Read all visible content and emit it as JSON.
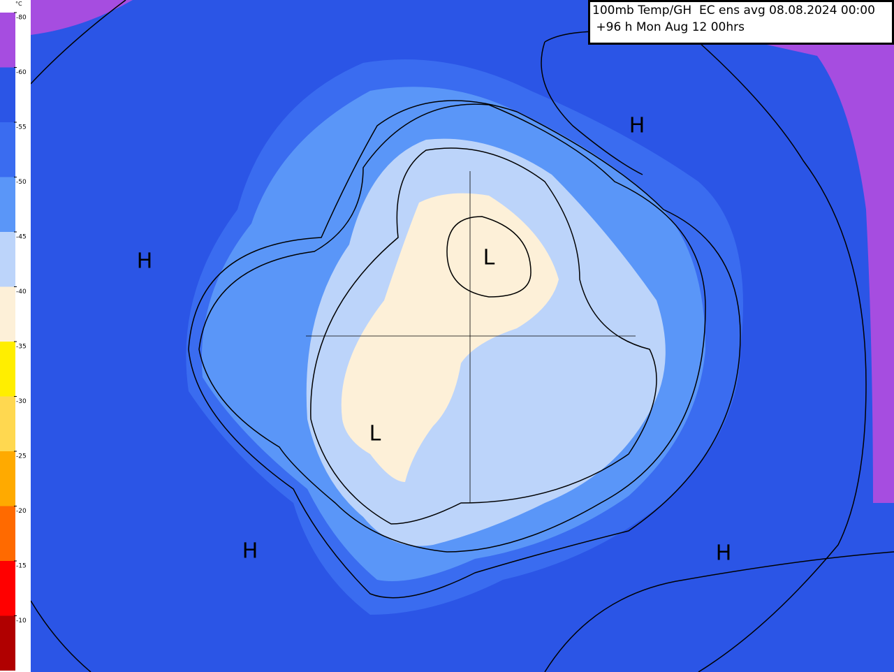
{
  "header": {
    "line1": "100mb Temp/GH  EC ens avg 08.08.2024 00:00",
    "line2": " +96 h Mon Aug 12 00hrs"
  },
  "legend": {
    "unit": "°C",
    "entries": [
      {
        "label": "-80",
        "color": "#a64de0"
      },
      {
        "label": "-60",
        "color": "#2b55e6"
      },
      {
        "label": "-55",
        "color": "#3a6cf0"
      },
      {
        "label": "-50",
        "color": "#5a96f8"
      },
      {
        "label": "-45",
        "color": "#bcd4fa"
      },
      {
        "label": "-40",
        "color": "#fdf0d8"
      },
      {
        "label": "-35",
        "color": "#ffee00"
      },
      {
        "label": "-30",
        "color": "#ffd850"
      },
      {
        "label": "-25",
        "color": "#ffaa00"
      },
      {
        "label": "-20",
        "color": "#ff6a00"
      },
      {
        "label": "-15",
        "color": "#ff0000"
      },
      {
        "label": "-10",
        "color": "#b00000"
      }
    ]
  },
  "map_labels": [
    "H",
    "H",
    "L",
    "L",
    "H",
    "H"
  ]
}
